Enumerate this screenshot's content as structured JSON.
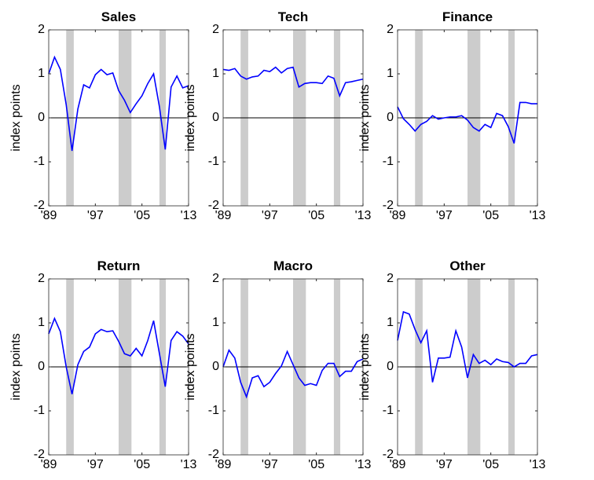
{
  "chart_data": [
    {
      "type": "line",
      "title": "Sales",
      "ylabel": "index points",
      "color": "#0000ff",
      "x": [
        1989,
        1990,
        1991,
        1992,
        1993,
        1994,
        1995,
        1996,
        1997,
        1998,
        1999,
        2000,
        2001,
        2002,
        2003,
        2004,
        2005,
        2006,
        2007,
        2008,
        2009,
        2010,
        2011,
        2012,
        2013
      ],
      "values": [
        1.0,
        1.38,
        1.1,
        0.3,
        -0.75,
        0.2,
        0.75,
        0.68,
        0.98,
        1.1,
        0.98,
        1.02,
        0.62,
        0.4,
        0.12,
        0.32,
        0.5,
        0.78,
        1.0,
        0.25,
        -0.72,
        0.7,
        0.95,
        0.68,
        0.73
      ],
      "xlim": [
        1989,
        2013
      ],
      "xticks": [
        {
          "value": 1989,
          "label": "'89"
        },
        {
          "value": 1997,
          "label": "'97"
        },
        {
          "value": 2005,
          "label": "'05"
        },
        {
          "value": 2013,
          "label": "'13"
        }
      ],
      "ylim": [
        -2,
        2
      ],
      "yticks": [
        -2,
        -1,
        0,
        1,
        2
      ],
      "zero_line": true,
      "shaded_periods": [
        [
          1992,
          1993.3
        ],
        [
          2001,
          2003.2
        ],
        [
          2008,
          2009.1
        ]
      ],
      "shade_color": "#cccccc"
    },
    {
      "type": "line",
      "title": "Tech",
      "ylabel": "index points",
      "color": "#0000ff",
      "x": [
        1989,
        1990,
        1991,
        1992,
        1993,
        1994,
        1995,
        1996,
        1997,
        1998,
        1999,
        2000,
        2001,
        2002,
        2003,
        2004,
        2005,
        2006,
        2007,
        2008,
        2009,
        2010,
        2011,
        2012,
        2013
      ],
      "values": [
        1.1,
        1.08,
        1.12,
        0.95,
        0.88,
        0.93,
        0.95,
        1.08,
        1.05,
        1.15,
        1.02,
        1.12,
        1.15,
        0.7,
        0.78,
        0.8,
        0.8,
        0.78,
        0.95,
        0.9,
        0.5,
        0.8,
        0.82,
        0.85,
        0.88
      ],
      "xlim": [
        1989,
        2013
      ],
      "xticks": [
        {
          "value": 1989,
          "label": "'89"
        },
        {
          "value": 1997,
          "label": "'97"
        },
        {
          "value": 2005,
          "label": "'05"
        },
        {
          "value": 2013,
          "label": "'13"
        }
      ],
      "ylim": [
        -2,
        2
      ],
      "yticks": [
        -2,
        -1,
        0,
        1,
        2
      ],
      "zero_line": true,
      "shaded_periods": [
        [
          1992,
          1993.3
        ],
        [
          2001,
          2003.2
        ],
        [
          2008,
          2009.1
        ]
      ],
      "shade_color": "#cccccc"
    },
    {
      "type": "line",
      "title": "Finance",
      "ylabel": "index points",
      "color": "#0000ff",
      "x": [
        1989,
        1990,
        1991,
        1992,
        1993,
        1994,
        1995,
        1996,
        1997,
        1998,
        1999,
        2000,
        2001,
        2002,
        2003,
        2004,
        2005,
        2006,
        2007,
        2008,
        2009,
        2010,
        2011,
        2012,
        2013
      ],
      "values": [
        0.25,
        -0.02,
        -0.15,
        -0.3,
        -0.15,
        -0.08,
        0.05,
        -0.03,
        0.0,
        0.02,
        0.02,
        0.05,
        -0.05,
        -0.22,
        -0.3,
        -0.15,
        -0.22,
        0.1,
        0.05,
        -0.2,
        -0.58,
        0.35,
        0.35,
        0.32,
        0.32
      ],
      "xlim": [
        1989,
        2013
      ],
      "xticks": [
        {
          "value": 1989,
          "label": "'89"
        },
        {
          "value": 1997,
          "label": "'97"
        },
        {
          "value": 2005,
          "label": "'05"
        },
        {
          "value": 2013,
          "label": "'13"
        }
      ],
      "ylim": [
        -2,
        2
      ],
      "yticks": [
        -2,
        -1,
        0,
        1,
        2
      ],
      "zero_line": true,
      "shaded_periods": [
        [
          1992,
          1993.3
        ],
        [
          2001,
          2003.2
        ],
        [
          2008,
          2009.1
        ]
      ],
      "shade_color": "#cccccc"
    },
    {
      "type": "line",
      "title": "Return",
      "ylabel": "index points",
      "color": "#0000ff",
      "x": [
        1989,
        1990,
        1991,
        1992,
        1993,
        1994,
        1995,
        1996,
        1997,
        1998,
        1999,
        2000,
        2001,
        2002,
        2003,
        2004,
        2005,
        2006,
        2007,
        2008,
        2009,
        2010,
        2011,
        2012,
        2013
      ],
      "values": [
        0.75,
        1.1,
        0.8,
        0.0,
        -0.62,
        0.05,
        0.35,
        0.45,
        0.75,
        0.85,
        0.8,
        0.82,
        0.58,
        0.3,
        0.25,
        0.42,
        0.25,
        0.6,
        1.05,
        0.3,
        -0.45,
        0.6,
        0.8,
        0.7,
        0.52
      ],
      "xlim": [
        1989,
        2013
      ],
      "xticks": [
        {
          "value": 1989,
          "label": "'89"
        },
        {
          "value": 1997,
          "label": "'97"
        },
        {
          "value": 2005,
          "label": "'05"
        },
        {
          "value": 2013,
          "label": "'13"
        }
      ],
      "ylim": [
        -2,
        2
      ],
      "yticks": [
        -2,
        -1,
        0,
        1,
        2
      ],
      "zero_line": true,
      "shaded_periods": [
        [
          1992,
          1993.3
        ],
        [
          2001,
          2003.2
        ],
        [
          2008,
          2009.1
        ]
      ],
      "shade_color": "#cccccc"
    },
    {
      "type": "line",
      "title": "Macro",
      "ylabel": "index points",
      "color": "#0000ff",
      "x": [
        1989,
        1990,
        1991,
        1992,
        1993,
        1994,
        1995,
        1996,
        1997,
        1998,
        1999,
        2000,
        2001,
        2002,
        2003,
        2004,
        2005,
        2006,
        2007,
        2008,
        2009,
        2010,
        2011,
        2012,
        2013
      ],
      "values": [
        0.0,
        0.38,
        0.2,
        -0.35,
        -0.68,
        -0.25,
        -0.2,
        -0.45,
        -0.35,
        -0.15,
        0.02,
        0.35,
        0.05,
        -0.25,
        -0.42,
        -0.38,
        -0.42,
        -0.08,
        0.08,
        0.08,
        -0.22,
        -0.1,
        -0.1,
        0.12,
        0.18
      ],
      "xlim": [
        1989,
        2013
      ],
      "xticks": [
        {
          "value": 1989,
          "label": "'89"
        },
        {
          "value": 1997,
          "label": "'97"
        },
        {
          "value": 2005,
          "label": "'05"
        },
        {
          "value": 2013,
          "label": "'13"
        }
      ],
      "ylim": [
        -2,
        2
      ],
      "yticks": [
        -2,
        -1,
        0,
        1,
        2
      ],
      "zero_line": true,
      "shaded_periods": [
        [
          1992,
          1993.3
        ],
        [
          2001,
          2003.2
        ],
        [
          2008,
          2009.1
        ]
      ],
      "shade_color": "#cccccc"
    },
    {
      "type": "line",
      "title": "Other",
      "ylabel": "index points",
      "color": "#0000ff",
      "x": [
        1989,
        1990,
        1991,
        1992,
        1993,
        1994,
        1995,
        1996,
        1997,
        1998,
        1999,
        2000,
        2001,
        2002,
        2003,
        2004,
        2005,
        2006,
        2007,
        2008,
        2009,
        2010,
        2011,
        2012,
        2013
      ],
      "values": [
        0.6,
        1.25,
        1.2,
        0.85,
        0.55,
        0.82,
        -0.35,
        0.2,
        0.2,
        0.22,
        0.82,
        0.45,
        -0.25,
        0.28,
        0.08,
        0.15,
        0.05,
        0.18,
        0.12,
        0.1,
        0.0,
        0.08,
        0.08,
        0.25,
        0.28
      ],
      "xlim": [
        1989,
        2013
      ],
      "xticks": [
        {
          "value": 1989,
          "label": "'89"
        },
        {
          "value": 1997,
          "label": "'97"
        },
        {
          "value": 2005,
          "label": "'05"
        },
        {
          "value": 2013,
          "label": "'13"
        }
      ],
      "ylim": [
        -2,
        2
      ],
      "yticks": [
        -2,
        -1,
        0,
        1,
        2
      ],
      "zero_line": true,
      "shaded_periods": [
        [
          1992,
          1993.3
        ],
        [
          2001,
          2003.2
        ],
        [
          2008,
          2009.1
        ]
      ],
      "shade_color": "#cccccc"
    }
  ]
}
